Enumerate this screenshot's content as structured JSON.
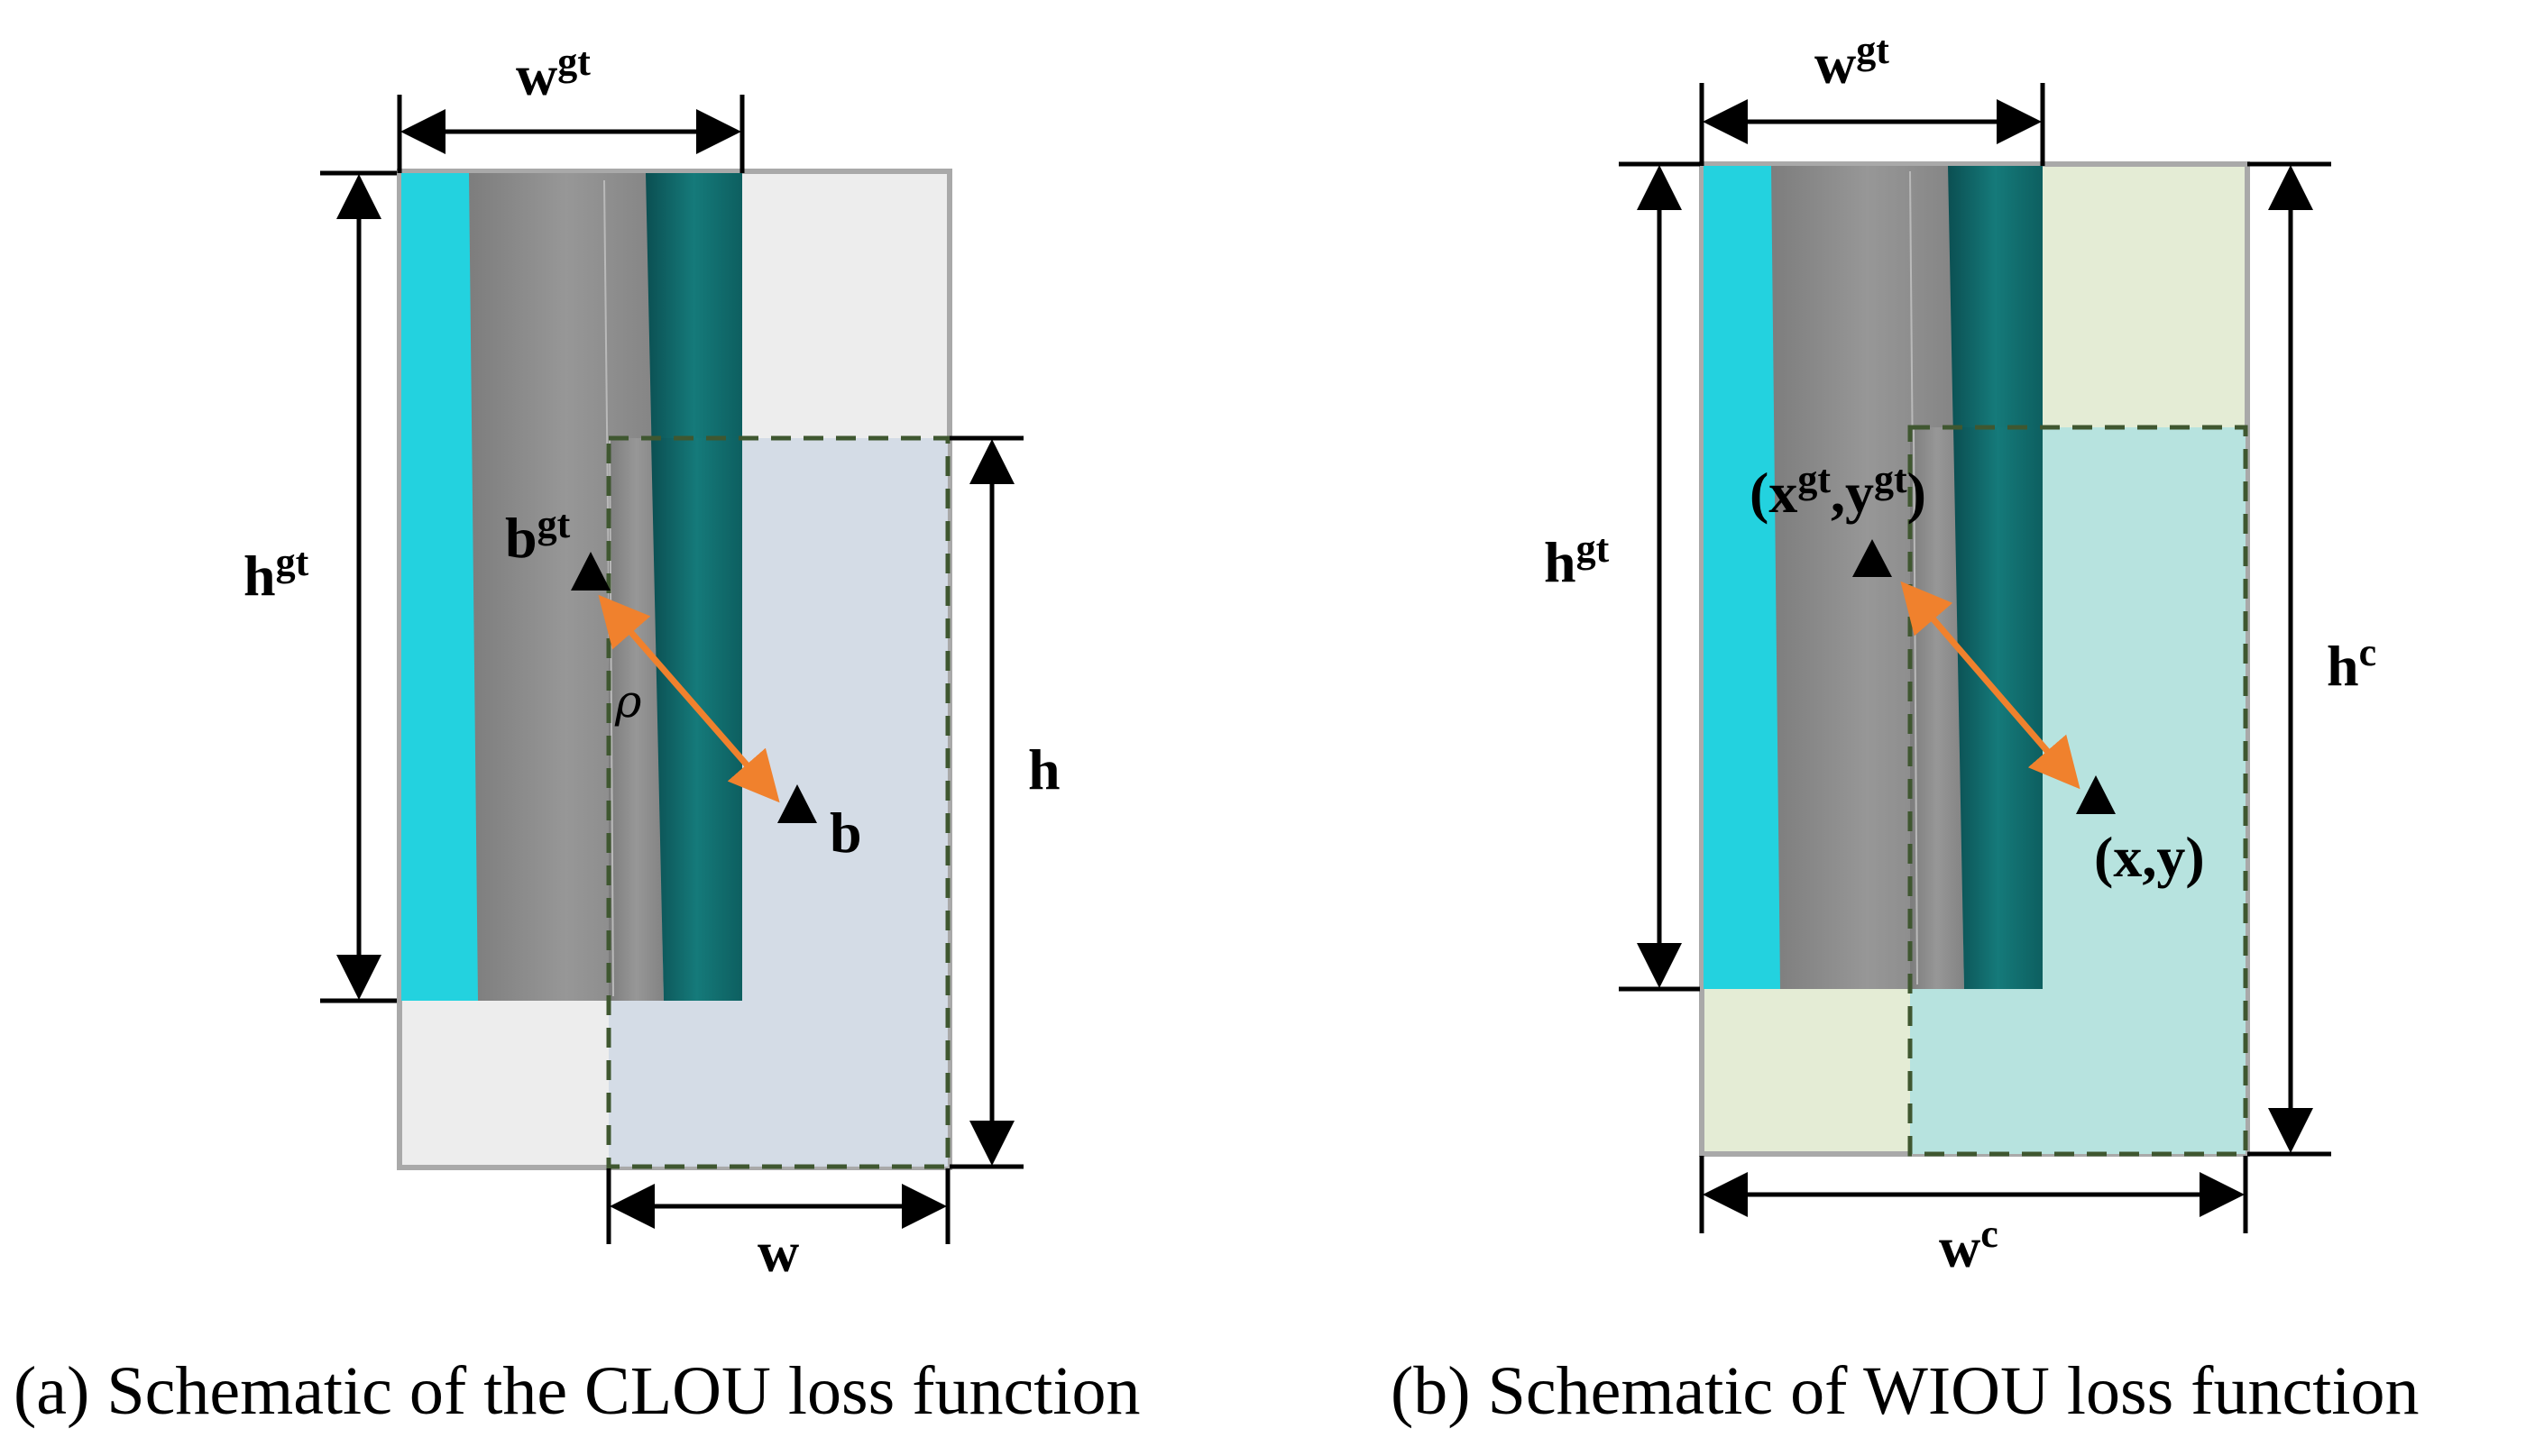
{
  "panel_a": {
    "label_wgt_base": "w",
    "label_wgt_sup": "gt",
    "label_hgt_base": "h",
    "label_hgt_sup": "gt",
    "label_bgt_base": "b",
    "label_bgt_sup": "gt",
    "label_b": "b",
    "label_rho": "ρ",
    "label_h": "h",
    "label_w": "w",
    "caption": "(a) Schematic of the CLOU loss function"
  },
  "panel_b": {
    "label_wgt_base": "w",
    "label_wgt_sup": "gt",
    "label_hgt_base": "h",
    "label_hgt_sup": "gt",
    "label_hc_base": "h",
    "label_hc_sup": "c",
    "label_wc_base": "w",
    "label_wc_sup": "c",
    "label_gt_center": "(xgt,ygt)",
    "label_pred_center": "(x,y)",
    "caption": "(b) Schematic of WIOU loss function"
  },
  "colors": {
    "cyan_strip": "#23d2df",
    "gray_road": "#8b8b8b",
    "teal_strip": "#0f6a6a",
    "enclosing_box_a": "#ededed",
    "pred_box_a": "#d3dbe6",
    "enclosing_box_b": "#e4ecd5",
    "pred_box_b": "#b7e3df",
    "arrow": "#f0812d",
    "dashed": "#3f5730"
  }
}
